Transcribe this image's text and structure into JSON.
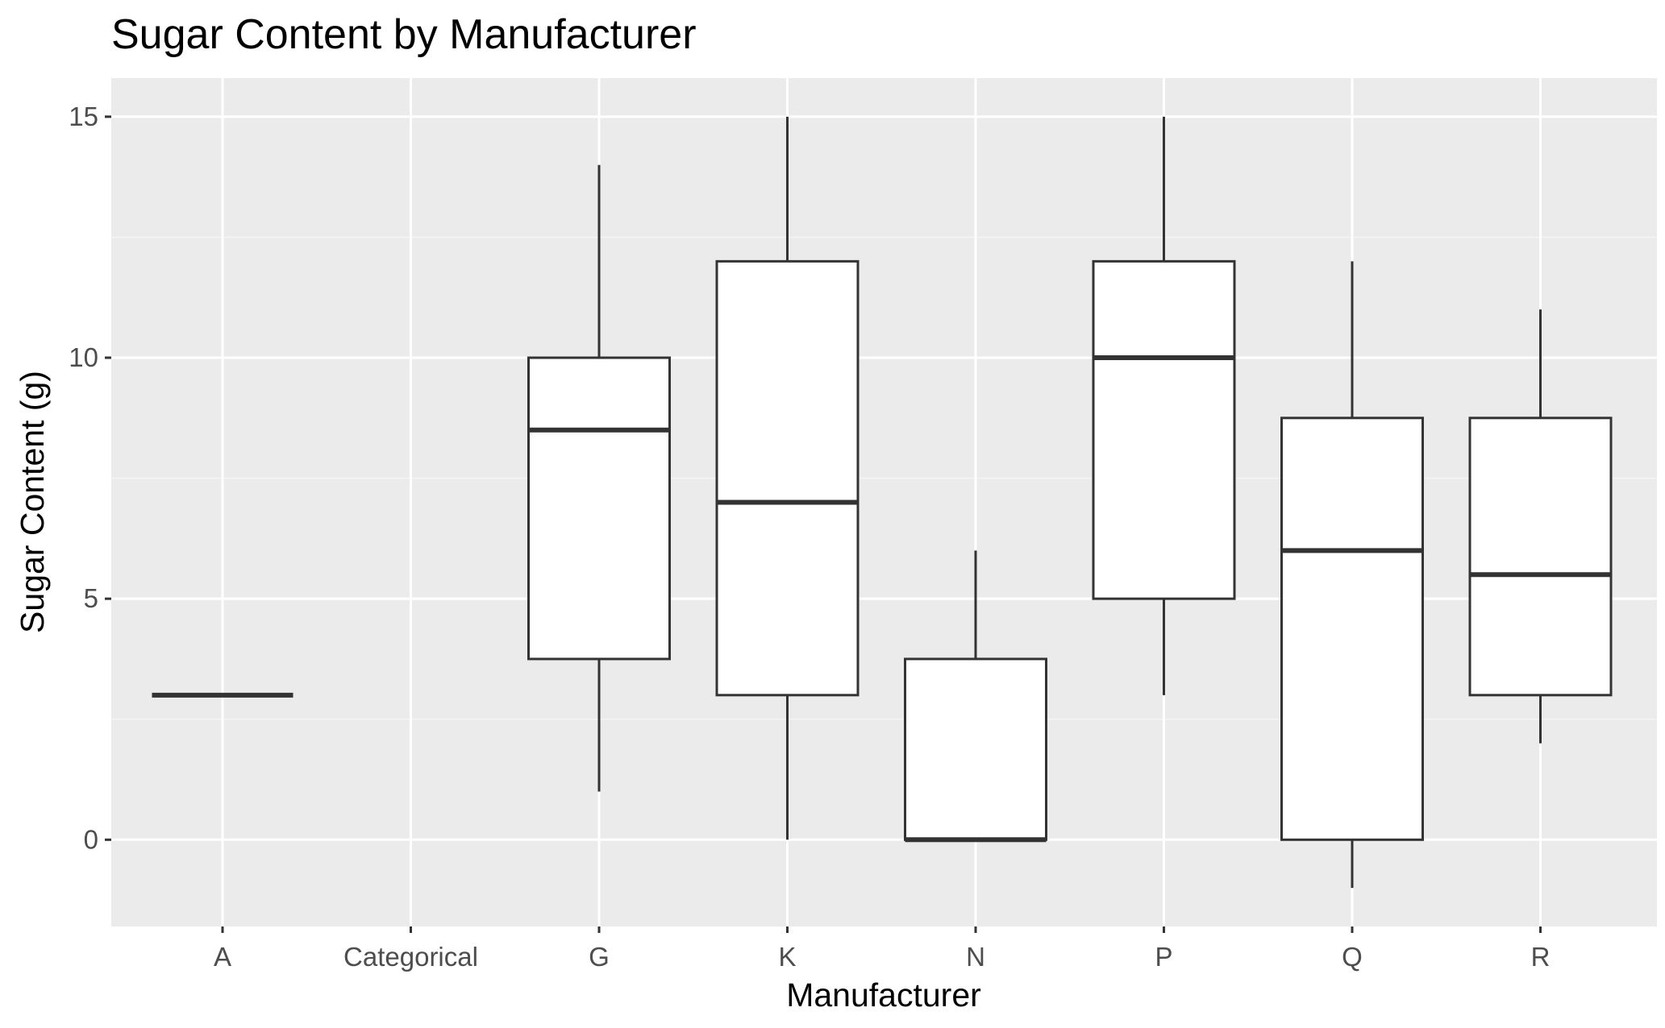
{
  "chart_data": {
    "type": "boxplot",
    "title": "Sugar Content by Manufacturer",
    "xlabel": "Manufacturer",
    "ylabel": "Sugar Content (g)",
    "categories": [
      "A",
      "Categorical",
      "G",
      "K",
      "N",
      "P",
      "Q",
      "R"
    ],
    "ylim": [
      -1.8,
      15.8
    ],
    "yticks": [
      0,
      5,
      10,
      15
    ],
    "ytick_labels": [
      "0",
      "5",
      "10",
      "15"
    ],
    "grid": true,
    "legend": "none",
    "boxes": [
      {
        "category": "A",
        "min": 3,
        "q1": 3,
        "median": 3,
        "q3": 3,
        "max": 3
      },
      {
        "category": "Categorical",
        "empty": true
      },
      {
        "category": "G",
        "min": 1,
        "q1": 3.75,
        "median": 8.5,
        "q3": 10,
        "max": 14
      },
      {
        "category": "K",
        "min": 0,
        "q1": 3,
        "median": 7,
        "q3": 12,
        "max": 15
      },
      {
        "category": "N",
        "min": 0,
        "q1": 0,
        "median": 0,
        "q3": 3.75,
        "max": 6
      },
      {
        "category": "P",
        "min": 3,
        "q1": 5,
        "median": 10,
        "q3": 12,
        "max": 15
      },
      {
        "category": "Q",
        "min": -1,
        "q1": 0,
        "median": 6,
        "q3": 8.75,
        "max": 12
      },
      {
        "category": "R",
        "min": 2,
        "q1": 3,
        "median": 5.5,
        "q3": 8.75,
        "max": 11
      }
    ],
    "colors": {
      "panel_background": "#ebebeb",
      "grid_major": "#ffffff",
      "grid_minor": "#f5f5f5",
      "box_fill": "#ffffff",
      "box_outline": "#333333",
      "tick_label": "#4d4d4d",
      "title": "#000000"
    }
  }
}
